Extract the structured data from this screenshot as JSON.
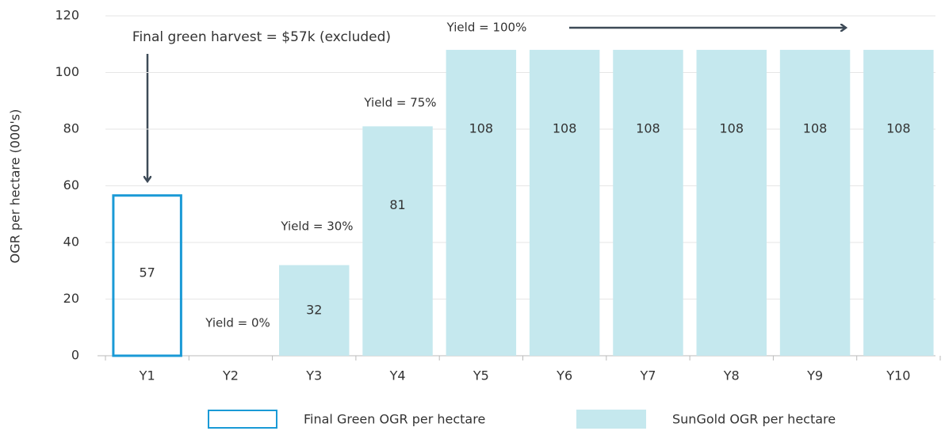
{
  "chart_data": {
    "type": "bar",
    "y_label": "OGR per hectare (000's)",
    "categories": [
      "Y1",
      "Y2",
      "Y3",
      "Y4",
      "Y5",
      "Y6",
      "Y7",
      "Y8",
      "Y9",
      "Y10"
    ],
    "series": [
      {
        "name": "Final Green OGR per hectare",
        "color": "#1a9ad6",
        "style": "outline",
        "values": [
          57,
          null,
          null,
          null,
          null,
          null,
          null,
          null,
          null,
          null
        ]
      },
      {
        "name": "SunGold OGR per hectare",
        "color": "#c5e8ee",
        "style": "fill",
        "values": [
          null,
          null,
          32,
          81,
          108,
          108,
          108,
          108,
          108,
          108
        ]
      }
    ],
    "ylim": [
      0,
      120
    ],
    "yticks": [
      0,
      20,
      40,
      60,
      80,
      100,
      120
    ],
    "grid": true,
    "annotations": [
      "Final green harvest = $57k (excluded)",
      "Yield = 0%",
      "Yield = 30%",
      "Yield = 75%",
      "Yield = 100%"
    ]
  }
}
